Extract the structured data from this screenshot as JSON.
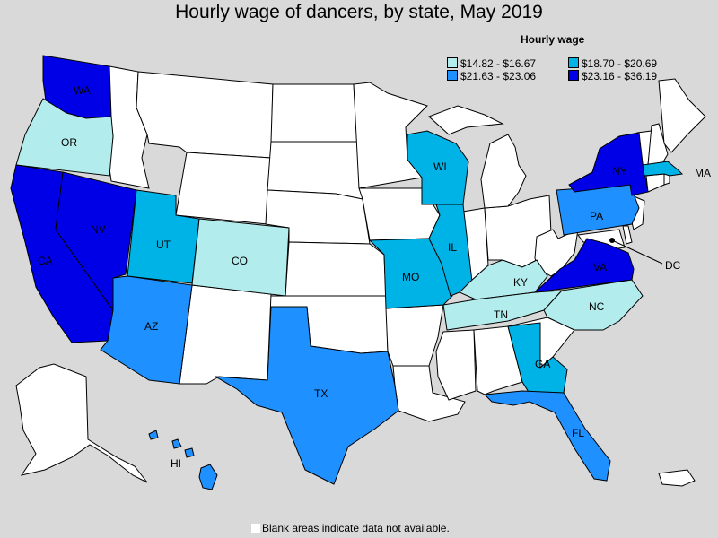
{
  "title": "Hourly wage of dancers, by state, May 2019",
  "legend": {
    "title": "Hourly wage",
    "items": [
      {
        "label": "$14.82 - $16.67",
        "color": "#b3ecec"
      },
      {
        "label": "$18.70 - $20.69",
        "color": "#00b3e6"
      },
      {
        "label": "$21.63 - $23.06",
        "color": "#1e90ff"
      },
      {
        "label": "$23.16 - $36.19",
        "color": "#0000e6"
      }
    ]
  },
  "no_data_color": "#ffffff",
  "states": {
    "WA": {
      "label": "WA",
      "tier": 4
    },
    "OR": {
      "label": "OR",
      "tier": 1
    },
    "CA": {
      "label": "CA",
      "tier": 4
    },
    "NV": {
      "label": "NV",
      "tier": 4
    },
    "UT": {
      "label": "UT",
      "tier": 2
    },
    "CO": {
      "label": "CO",
      "tier": 1
    },
    "AZ": {
      "label": "AZ",
      "tier": 3
    },
    "TX": {
      "label": "TX",
      "tier": 3
    },
    "MO": {
      "label": "MO",
      "tier": 2
    },
    "WI": {
      "label": "WI",
      "tier": 2
    },
    "IL": {
      "label": "IL",
      "tier": 2
    },
    "KY": {
      "label": "KY",
      "tier": 1
    },
    "TN": {
      "label": "TN",
      "tier": 1
    },
    "NC": {
      "label": "NC",
      "tier": 1
    },
    "GA": {
      "label": "GA",
      "tier": 2
    },
    "FL": {
      "label": "FL",
      "tier": 3
    },
    "VA": {
      "label": "VA",
      "tier": 4
    },
    "PA": {
      "label": "PA",
      "tier": 3
    },
    "NY": {
      "label": "NY",
      "tier": 4
    },
    "MA": {
      "label": "MA",
      "tier": 2
    },
    "HI": {
      "label": "HI",
      "tier": 3
    },
    "DC": {
      "label": "DC",
      "tier": 0
    }
  },
  "footnote": "Blank areas indicate data not available."
}
